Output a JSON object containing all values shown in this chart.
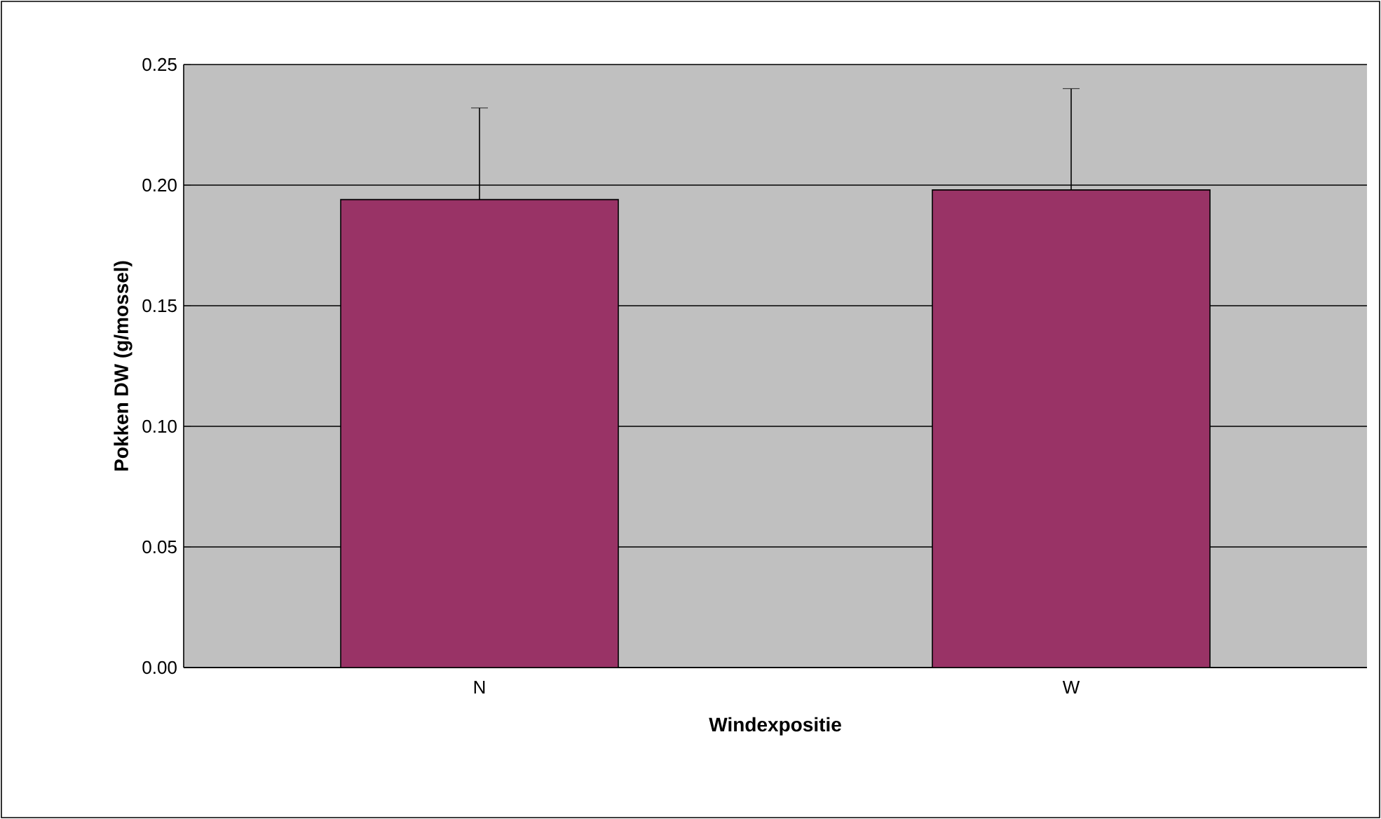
{
  "chart_data": {
    "type": "bar",
    "xlabel": "Windexpositie",
    "ylabel": "Pokken DW (g/mossel)",
    "categories": [
      "N",
      "W"
    ],
    "values": [
      0.194,
      0.198
    ],
    "errors": [
      [
        0.194,
        0.232
      ],
      [
        0.198,
        0.24
      ]
    ],
    "color": "#993366",
    "ylim": [
      0,
      0.25
    ],
    "yticks": [
      {
        "value": 0,
        "label": "0.00"
      },
      {
        "value": 0.05,
        "label": "0.05"
      },
      {
        "value": 0.1,
        "label": "0.10"
      },
      {
        "value": 0.15,
        "label": "0.15"
      },
      {
        "value": 0.2,
        "label": "0.20"
      },
      {
        "value": 0.25,
        "label": "0.25"
      }
    ],
    "grid": "y"
  }
}
